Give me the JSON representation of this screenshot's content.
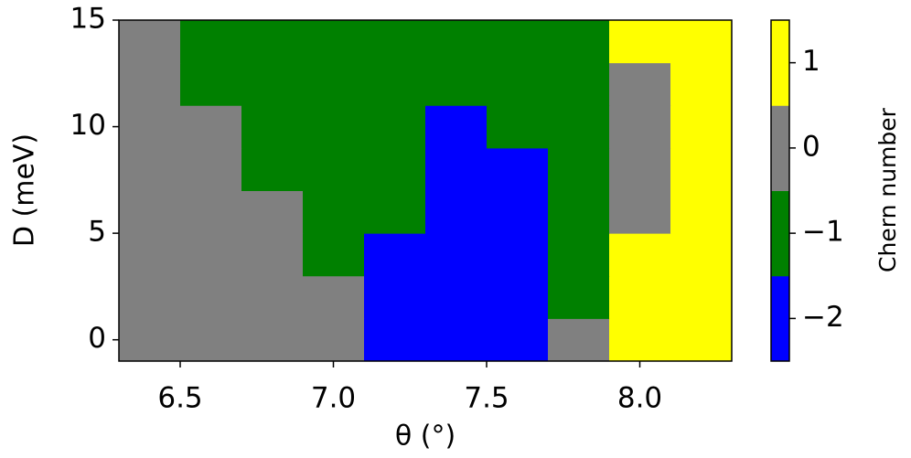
{
  "chart_data": {
    "type": "heatmap",
    "xlabel": "θ (°)",
    "ylabel": "D (meV)",
    "x": [
      6.4,
      6.6,
      6.8,
      7.0,
      7.2,
      7.4,
      7.6,
      7.8,
      8.0,
      8.2
    ],
    "y": [
      0,
      2,
      4,
      6,
      8,
      10,
      12,
      14
    ],
    "z": [
      [
        0,
        0,
        0,
        0,
        -2,
        -2,
        -2,
        0,
        1,
        1
      ],
      [
        0,
        0,
        0,
        0,
        -2,
        -2,
        -2,
        -1,
        1,
        1
      ],
      [
        0,
        0,
        0,
        -1,
        -2,
        -2,
        -2,
        -1,
        1,
        1
      ],
      [
        0,
        0,
        0,
        -1,
        -1,
        -2,
        -2,
        -1,
        0,
        1
      ],
      [
        0,
        0,
        -1,
        -1,
        -1,
        -2,
        -2,
        -1,
        0,
        1
      ],
      [
        0,
        0,
        -1,
        -1,
        -1,
        -2,
        -1,
        -1,
        0,
        1
      ],
      [
        0,
        -1,
        -1,
        -1,
        -1,
        -1,
        -1,
        -1,
        0,
        1
      ],
      [
        0,
        -1,
        -1,
        -1,
        -1,
        -1,
        -1,
        -1,
        1,
        1
      ]
    ],
    "xlim": [
      6.3,
      8.3
    ],
    "xticks": [
      6.5,
      {
        "value": 7.0,
        "label": "7.0"
      },
      7.5,
      {
        "value": 8.0,
        "label": "8.0"
      }
    ],
    "ylim": [
      -1,
      15
    ],
    "yticks": [
      0,
      5,
      10,
      15
    ],
    "colorbar": {
      "label": "Chern number",
      "levels": [
        -2,
        -1,
        0,
        1
      ],
      "colors": [
        "#0000ff",
        "#008000",
        "#808080",
        "#ffff00"
      ],
      "lim": [
        -2.5,
        1.5
      ],
      "ticks": [
        {
          "value": -2,
          "label": "−2"
        },
        {
          "value": -1,
          "label": "−1"
        },
        0,
        1
      ]
    }
  }
}
